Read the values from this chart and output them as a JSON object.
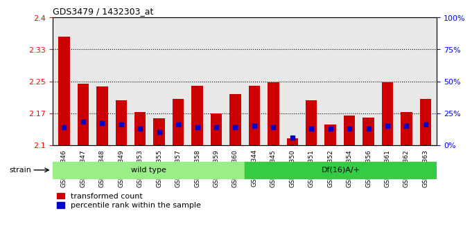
{
  "title": "GDS3479 / 1432303_at",
  "categories": [
    "GSM272346",
    "GSM272347",
    "GSM272348",
    "GSM272349",
    "GSM272353",
    "GSM272355",
    "GSM272357",
    "GSM272358",
    "GSM272359",
    "GSM272360",
    "GSM272344",
    "GSM272345",
    "GSM272350",
    "GSM272351",
    "GSM272352",
    "GSM272354",
    "GSM272356",
    "GSM272361",
    "GSM272362",
    "GSM272363"
  ],
  "red_values": [
    2.355,
    2.245,
    2.238,
    2.205,
    2.178,
    2.163,
    2.208,
    2.24,
    2.175,
    2.22,
    2.24,
    2.247,
    2.115,
    2.205,
    2.148,
    2.17,
    2.165,
    2.248,
    2.178,
    2.208
  ],
  "blue_values": [
    14,
    18,
    17,
    16,
    13,
    10,
    16,
    14,
    14,
    14,
    15,
    14,
    6,
    13,
    13,
    13,
    13,
    15,
    15,
    16
  ],
  "ymin": 2.1,
  "ymax": 2.4,
  "y2min": 0,
  "y2max": 100,
  "yticks": [
    2.1,
    2.175,
    2.25,
    2.325,
    2.4
  ],
  "y2ticks": [
    0,
    25,
    50,
    75,
    100
  ],
  "bar_color": "#cc0000",
  "blue_color": "#0000cc",
  "wild_type_count": 10,
  "wt_label": "wild type",
  "mut_label": "Df(16)A/+",
  "wt_color": "#99ee88",
  "mut_color": "#33cc44",
  "strain_label": "strain",
  "legend_red": "transformed count",
  "legend_blue": "percentile rank within the sample",
  "grid_color": "#000000",
  "bg_color": "#e8e8e8"
}
